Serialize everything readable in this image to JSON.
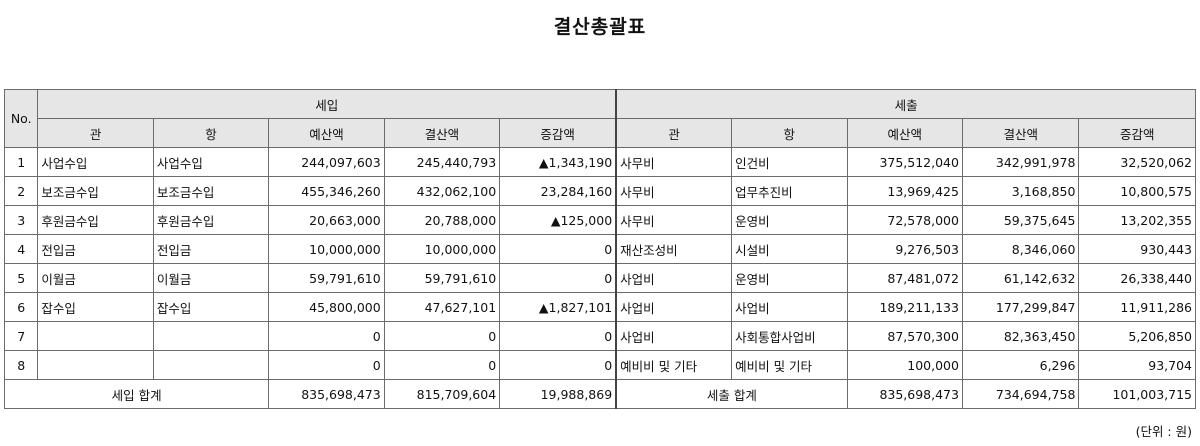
{
  "title": "결산총괄표",
  "unit_note": "(단위 : 원)",
  "headers": {
    "no": "No.",
    "income_group": "세입",
    "expense_group": "세출",
    "gwan": "관",
    "hang": "항",
    "budget": "예산액",
    "settled": "결산액",
    "diff": "증감액"
  },
  "rows": [
    {
      "no": "1",
      "in_gwan": "사업수입",
      "in_hang": "사업수입",
      "in_budget": "244,097,603",
      "in_settled": "245,440,793",
      "in_diff": "▲1,343,190",
      "ex_gwan": "사무비",
      "ex_hang": "인건비",
      "ex_budget": "375,512,040",
      "ex_settled": "342,991,978",
      "ex_diff": "32,520,062"
    },
    {
      "no": "2",
      "in_gwan": "보조금수입",
      "in_hang": "보조금수입",
      "in_budget": "455,346,260",
      "in_settled": "432,062,100",
      "in_diff": "23,284,160",
      "ex_gwan": "사무비",
      "ex_hang": "업무추진비",
      "ex_budget": "13,969,425",
      "ex_settled": "3,168,850",
      "ex_diff": "10,800,575"
    },
    {
      "no": "3",
      "in_gwan": "후원금수입",
      "in_hang": "후원금수입",
      "in_budget": "20,663,000",
      "in_settled": "20,788,000",
      "in_diff": "▲125,000",
      "ex_gwan": "사무비",
      "ex_hang": "운영비",
      "ex_budget": "72,578,000",
      "ex_settled": "59,375,645",
      "ex_diff": "13,202,355"
    },
    {
      "no": "4",
      "in_gwan": "전입금",
      "in_hang": "전입금",
      "in_budget": "10,000,000",
      "in_settled": "10,000,000",
      "in_diff": "0",
      "ex_gwan": "재산조성비",
      "ex_hang": "시설비",
      "ex_budget": "9,276,503",
      "ex_settled": "8,346,060",
      "ex_diff": "930,443"
    },
    {
      "no": "5",
      "in_gwan": "이월금",
      "in_hang": "이월금",
      "in_budget": "59,791,610",
      "in_settled": "59,791,610",
      "in_diff": "0",
      "ex_gwan": "사업비",
      "ex_hang": "운영비",
      "ex_budget": "87,481,072",
      "ex_settled": "61,142,632",
      "ex_diff": "26,338,440"
    },
    {
      "no": "6",
      "in_gwan": "잡수입",
      "in_hang": "잡수입",
      "in_budget": "45,800,000",
      "in_settled": "47,627,101",
      "in_diff": "▲1,827,101",
      "ex_gwan": "사업비",
      "ex_hang": "사업비",
      "ex_budget": "189,211,133",
      "ex_settled": "177,299,847",
      "ex_diff": "11,911,286"
    },
    {
      "no": "7",
      "in_gwan": "",
      "in_hang": "",
      "in_budget": "0",
      "in_settled": "0",
      "in_diff": "0",
      "ex_gwan": "사업비",
      "ex_hang": "사회통합사업비",
      "ex_budget": "87,570,300",
      "ex_settled": "82,363,450",
      "ex_diff": "5,206,850"
    },
    {
      "no": "8",
      "in_gwan": "",
      "in_hang": "",
      "in_budget": "0",
      "in_settled": "0",
      "in_diff": "0",
      "ex_gwan": "예비비 및 기타",
      "ex_hang": "예비비 및 기타",
      "ex_budget": "100,000",
      "ex_settled": "6,296",
      "ex_diff": "93,704"
    }
  ],
  "totals": {
    "income_label": "세입 합계",
    "in_budget": "835,698,473",
    "in_settled": "815,709,604",
    "in_diff": "19,988,869",
    "expense_label": "세출 합계",
    "ex_budget": "835,698,473",
    "ex_settled": "734,694,758",
    "ex_diff": "101,003,715"
  }
}
